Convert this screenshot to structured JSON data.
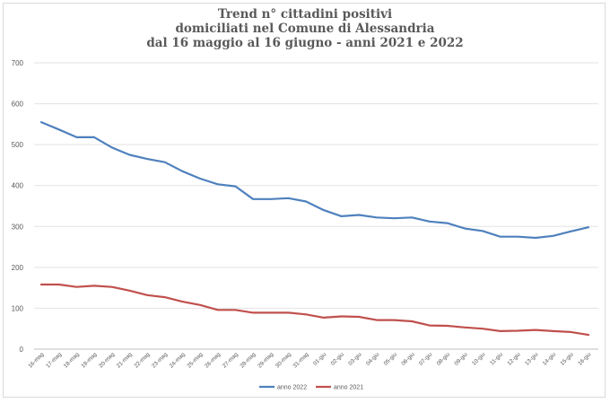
{
  "chart_data": {
    "type": "line",
    "title_lines": [
      "Trend n° cittadini positivi",
      "domiciliati nel Comune di Alessandria",
      "dal 16 maggio al 16 giugno - anni 2021 e 2022"
    ],
    "xlabel": "",
    "ylabel": "",
    "ylim": [
      0,
      700
    ],
    "yticks": [
      0,
      100,
      200,
      300,
      400,
      500,
      600,
      700
    ],
    "grid": true,
    "legend_position": "bottom",
    "categories": [
      "16-mag",
      "17-mag",
      "18-mag",
      "19-mag",
      "20-mag",
      "21-mag",
      "22-mag",
      "23-mag",
      "24-mag",
      "25-mag",
      "26-mag",
      "27-mag",
      "28-mag",
      "29-mag",
      "30-mag",
      "31-mag",
      "01-giu",
      "02-giu",
      "03-giu",
      "04-giu",
      "05-giu",
      "06-giu",
      "07-giu",
      "08-giu",
      "09-giu",
      "10-giu",
      "11-giu",
      "12-giu",
      "13-giu",
      "14-giu",
      "15-giu",
      "16-giu"
    ],
    "series": [
      {
        "name": "anno 2022",
        "color": "#4f81bd",
        "values": [
          555,
          537,
          518,
          518,
          493,
          475,
          465,
          457,
          435,
          417,
          403,
          398,
          367,
          367,
          369,
          361,
          340,
          325,
          328,
          322,
          320,
          322,
          312,
          308,
          295,
          289,
          275,
          275,
          272,
          277,
          288,
          298
        ]
      },
      {
        "name": "anno 2021",
        "color": "#c0504d",
        "values": [
          158,
          158,
          152,
          155,
          152,
          143,
          132,
          127,
          116,
          108,
          96,
          96,
          89,
          89,
          89,
          85,
          77,
          80,
          79,
          71,
          71,
          68,
          58,
          57,
          53,
          50,
          44,
          45,
          47,
          44,
          42,
          35
        ]
      }
    ]
  }
}
